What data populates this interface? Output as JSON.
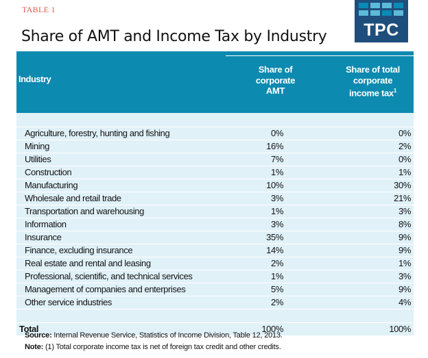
{
  "header": {
    "table_label": "TABLE 1",
    "title": "Share of AMT and Income Tax by Industry",
    "logo_text": "TPC",
    "logo_tile_colors": [
      "#0a8ab5",
      "#5bbbd9",
      "#5bbbd9",
      "#0a8ab5",
      "#5bbbd9",
      "#5bbbd9",
      "#0a8ab5",
      "#5bbbd9"
    ]
  },
  "table": {
    "columns": {
      "industry": "Industry",
      "amt": [
        "Share of",
        "corporate",
        "AMT"
      ],
      "tax": [
        "Share of total",
        "corporate",
        "income tax"
      ],
      "tax_footnote_mark": "1"
    },
    "rows": [
      {
        "industry": "Agriculture, forestry, hunting and fishing",
        "amt": "0%",
        "tax": "0%"
      },
      {
        "industry": "Mining",
        "amt": "16%",
        "tax": "2%"
      },
      {
        "industry": "Utilities",
        "amt": "7%",
        "tax": "0%"
      },
      {
        "industry": "Construction",
        "amt": "1%",
        "tax": "1%"
      },
      {
        "industry": "Manufacturing",
        "amt": "10%",
        "tax": "30%"
      },
      {
        "industry": "Wholesale and retail trade",
        "amt": "3%",
        "tax": "21%"
      },
      {
        "industry": "Transportation and warehousing",
        "amt": "1%",
        "tax": "3%"
      },
      {
        "industry": "Information",
        "amt": "3%",
        "tax": "8%"
      },
      {
        "industry": "Insurance",
        "amt": "35%",
        "tax": "9%"
      },
      {
        "industry": "Finance, excluding insurance",
        "amt": "14%",
        "tax": "9%"
      },
      {
        "industry": "Real estate and rental and leasing",
        "amt": "2%",
        "tax": "1%"
      },
      {
        "industry": "Professional, scientific, and technical services",
        "amt": "1%",
        "tax": "3%"
      },
      {
        "industry": "Management of companies and enterprises",
        "amt": "5%",
        "tax": "9%"
      },
      {
        "industry": "Other service industries",
        "amt": "2%",
        "tax": "4%"
      }
    ],
    "total": {
      "label": "Total",
      "amt": "100%",
      "tax": "100%"
    }
  },
  "footer": {
    "source_label": "Source:",
    "source_text": " Internal Revenue Service, Statistics of Income Division, Table 12, 2013.",
    "note_label": "Note:",
    "note_text": " (1) Total corporate income tax is net of foreign tax credit and other credits."
  }
}
